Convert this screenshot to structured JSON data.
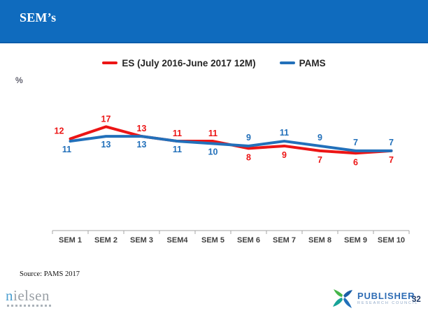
{
  "slide": {
    "title": "SEM’s",
    "percent_label": "%",
    "source": "Source: PAMS 2017",
    "page_number": "32"
  },
  "legend": {
    "items": [
      {
        "label": "ES (July 2016-June 2017 12M)",
        "color": "#ec1515"
      },
      {
        "label": "PAMS",
        "color": "#2270ba"
      }
    ]
  },
  "chart_data": {
    "type": "line",
    "categories": [
      "SEM 1",
      "SEM 2",
      "SEM 3",
      "SEM4",
      "SEM 5",
      "SEM 6",
      "SEM 7",
      "SEM 8",
      "SEM 9",
      "SEM 10"
    ],
    "series": [
      {
        "name": "ES (July 2016-June 2017 12M)",
        "color": "#ec1515",
        "values": [
          12,
          17,
          13,
          11,
          11,
          8,
          9,
          7,
          6,
          7
        ]
      },
      {
        "name": "PAMS",
        "color": "#2270ba",
        "values": [
          11,
          13,
          13,
          11,
          10,
          9,
          11,
          9,
          7,
          7
        ]
      }
    ],
    "title": "SEM’s",
    "xlabel": "",
    "ylabel": "%",
    "grid": false,
    "legend_position": "top",
    "data_labels": true,
    "axis_color": "#a6a6a6",
    "tick_label_color": "#404040"
  },
  "footer": {
    "nielsen_first": "n",
    "nielsen_rest": "ielsen",
    "prc_name": "PUBLISHER",
    "prc_sub": "RESEARCH COUNCIL"
  }
}
